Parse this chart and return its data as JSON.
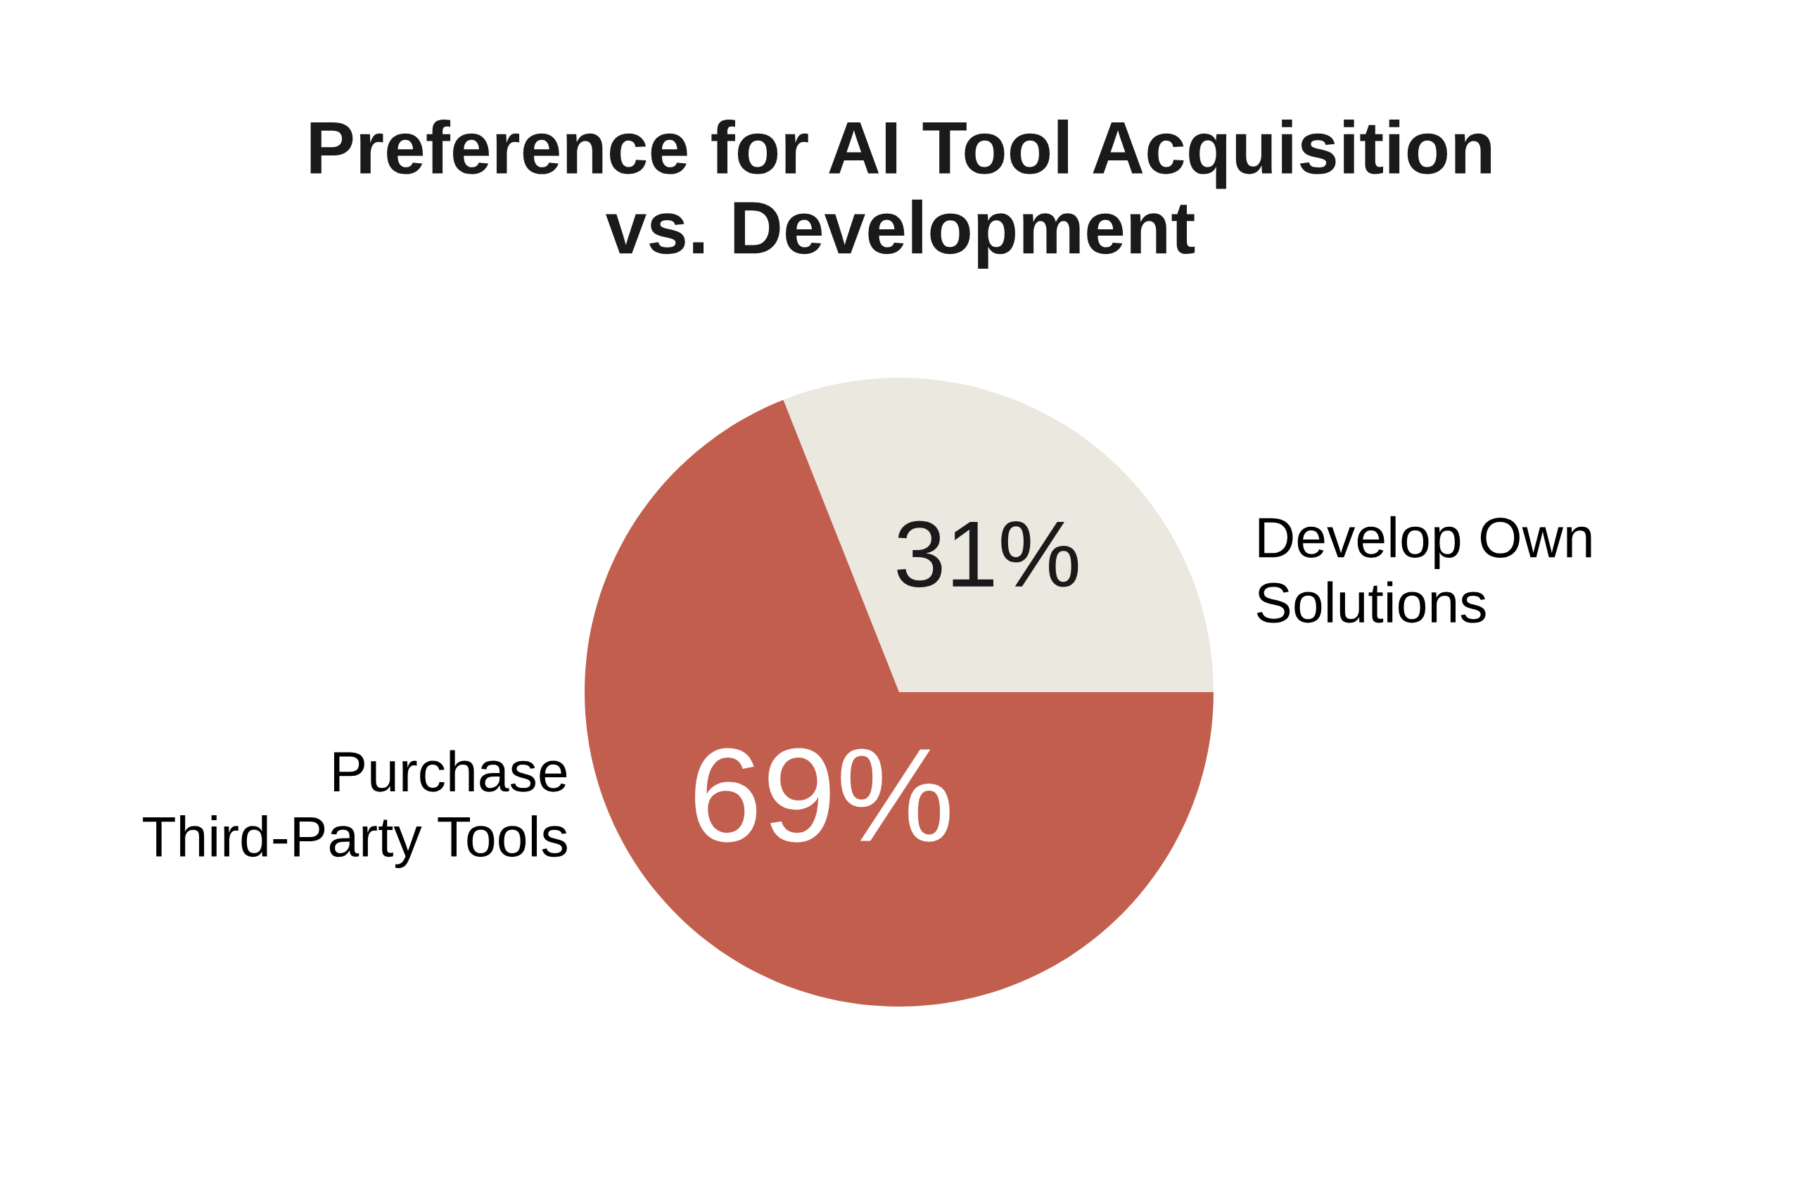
{
  "chart_data": {
    "type": "pie",
    "title": "Preference for AI Tool Acquisition\nvs. Development",
    "categories": [
      "Develop Own\nSolutions",
      "Purchase\nThird-Party Tools"
    ],
    "values": [
      31,
      69
    ],
    "colors": [
      "#ebe8e0",
      "#c25e4d"
    ],
    "value_labels": [
      "31%",
      "69%"
    ]
  }
}
